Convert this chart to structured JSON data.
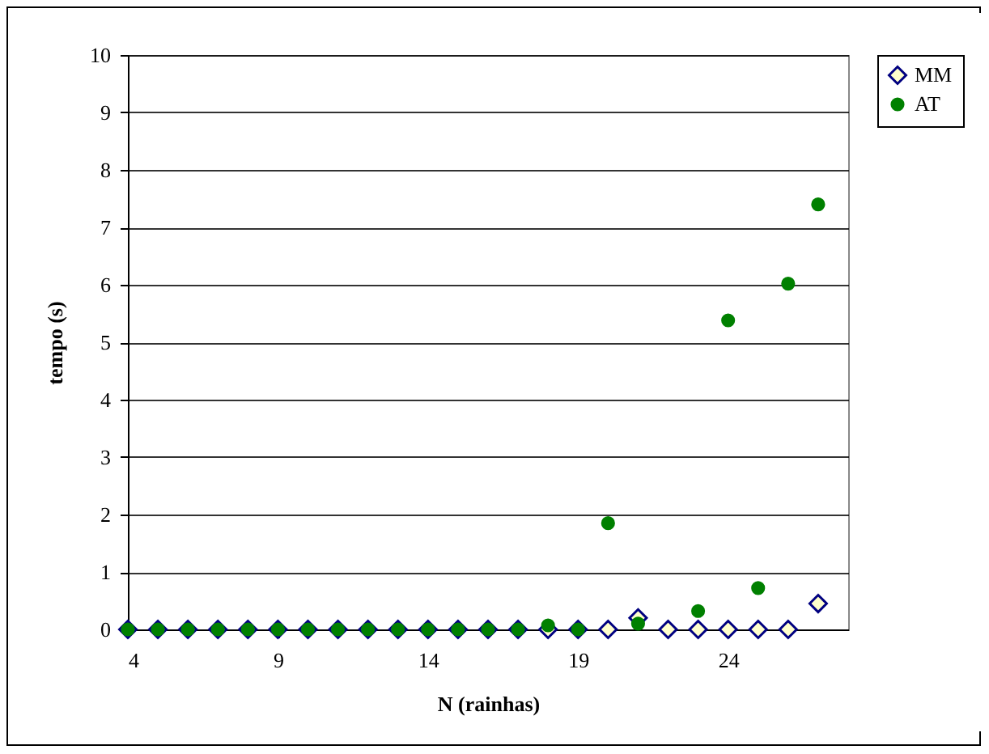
{
  "chart_data": {
    "type": "scatter",
    "xlabel": "N (rainhas)",
    "ylabel": "tempo (s)",
    "x": [
      4,
      5,
      6,
      7,
      8,
      9,
      10,
      11,
      12,
      13,
      14,
      15,
      16,
      17,
      18,
      19,
      20,
      21,
      22,
      23,
      24,
      25,
      26,
      27
    ],
    "xlim": [
      4,
      28
    ],
    "xticks": [
      4,
      9,
      14,
      19,
      24
    ],
    "ylim": [
      0,
      10
    ],
    "yticks": [
      0,
      1,
      2,
      3,
      4,
      5,
      6,
      7,
      8,
      9,
      10
    ],
    "grid": "y",
    "legend": "right",
    "series": [
      {
        "name": "MM",
        "color": "#000080",
        "marker": "diamond",
        "values": [
          0,
          0,
          0,
          0,
          0,
          0,
          0,
          0,
          0,
          0,
          0,
          0,
          0,
          0,
          0,
          0,
          0,
          0.2,
          0,
          0,
          0,
          0,
          0,
          0.45
        ]
      },
      {
        "name": "AT",
        "color": "#008000",
        "marker": "circle",
        "values": [
          0,
          0,
          0,
          0,
          0,
          0,
          0,
          0,
          0,
          0,
          0,
          0,
          0,
          0,
          0.07,
          0,
          1.85,
          0.1,
          null,
          0.32,
          5.38,
          0.72,
          6.02,
          7.4
        ]
      }
    ]
  }
}
